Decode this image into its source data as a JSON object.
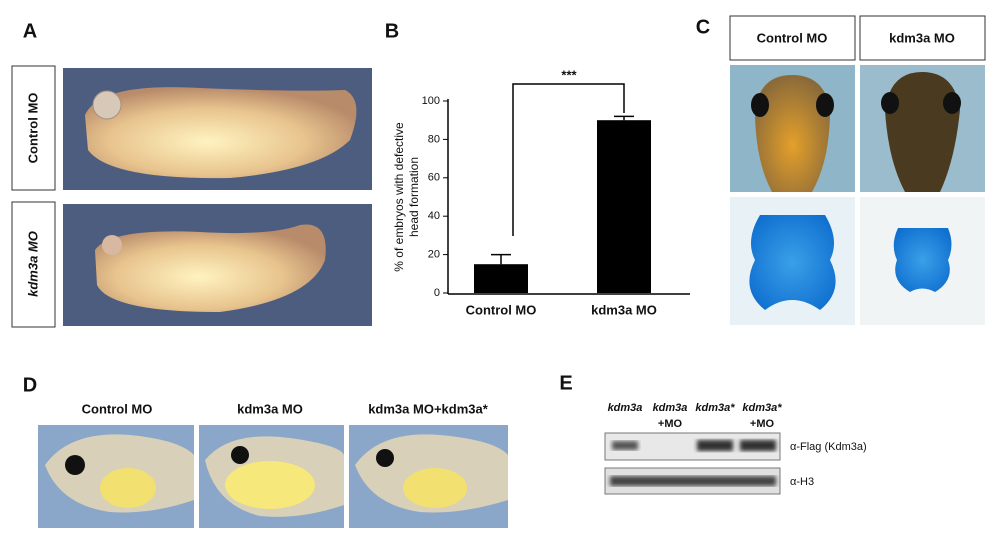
{
  "panels": {
    "a": {
      "label": "A",
      "rows": [
        "Control  MO",
        "kdm3a  MO"
      ]
    },
    "b": {
      "label": "B"
    },
    "c": {
      "label": "C",
      "columns": [
        "Control  MO",
        "kdm3a  MO"
      ]
    },
    "d": {
      "label": "D",
      "columns": [
        "Control MO",
        "kdm3a MO",
        "kdm3a MO+kdm3a*"
      ]
    },
    "e": {
      "label": "E",
      "columns": [
        [
          "kdm3a"
        ],
        [
          "kdm3a",
          "+MO"
        ],
        [
          "kdm3a*"
        ],
        [
          "kdm3a*",
          "+MO"
        ]
      ],
      "rows": [
        "α-Flag (Kdm3a)",
        "α-H3"
      ]
    }
  },
  "chart_data": {
    "type": "bar",
    "ylabel": [
      "% of  embryos with defective",
      "head formation"
    ],
    "categories": [
      "Control MO",
      "kdm3a MO"
    ],
    "series": [
      {
        "color": "#000000",
        "values": [
          15,
          90
        ],
        "errors": [
          5,
          2
        ]
      }
    ],
    "annotation": "***",
    "ylim": [
      0,
      100
    ],
    "yticks": [
      0,
      20,
      40,
      60,
      80,
      100
    ]
  }
}
